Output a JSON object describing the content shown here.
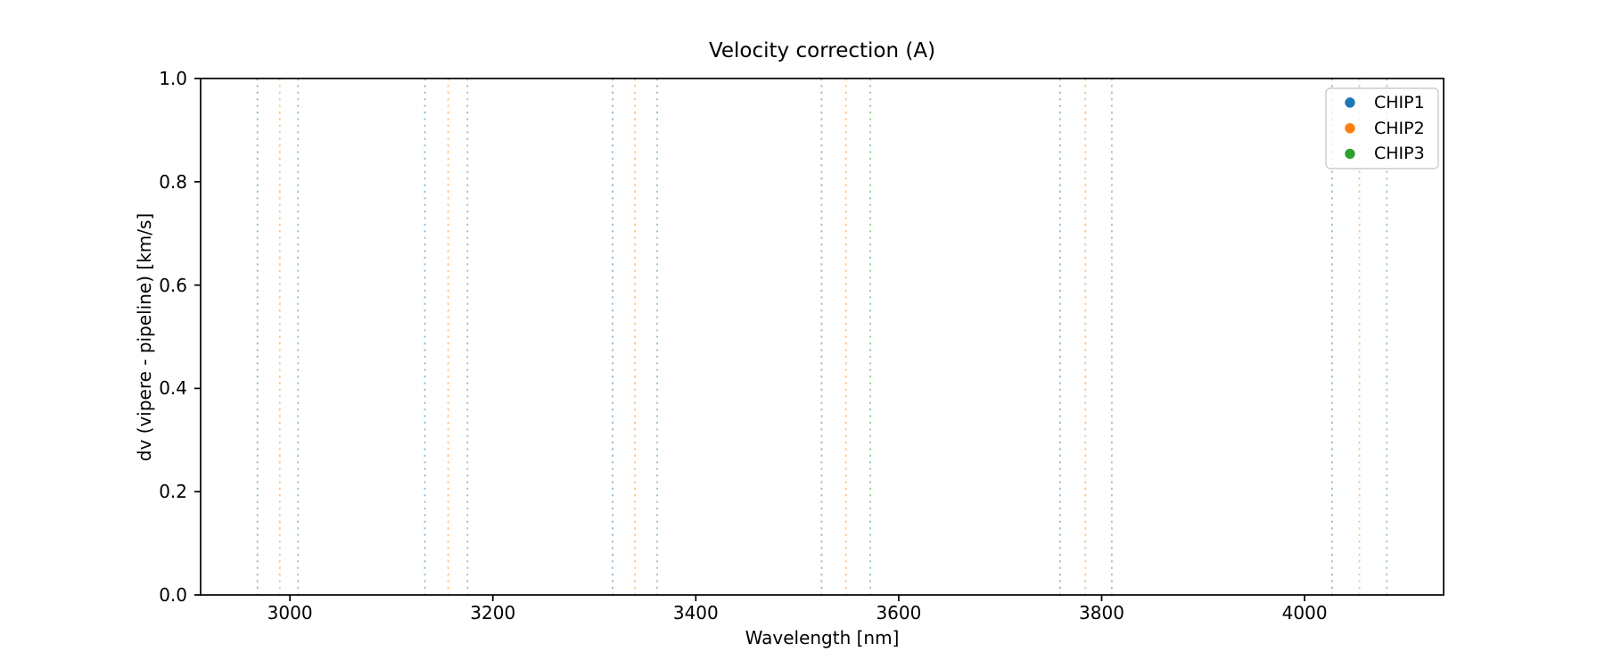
{
  "figure": {
    "background": "#ffffff",
    "axis_color": "#000000"
  },
  "chart_data": {
    "type": "scatter",
    "title": "Velocity correction (A)",
    "xlabel": "Wavelength [nm]",
    "ylabel": "dv (vipere - pipeline) [km/s]",
    "xlim": [
      2912,
      4137
    ],
    "ylim": [
      0.0,
      1.0
    ],
    "xticks": [
      3000,
      3200,
      3400,
      3600,
      3800,
      4000
    ],
    "xtick_labels": [
      "3000",
      "3200",
      "3400",
      "3600",
      "3800",
      "4000"
    ],
    "yticks": [
      0.0,
      0.2,
      0.4,
      0.6,
      0.8,
      1.0
    ],
    "ytick_labels": [
      "0.0",
      "0.2",
      "0.4",
      "0.6",
      "0.8",
      "1.0"
    ],
    "grid": false,
    "series": [
      {
        "name": "CHIP1",
        "color": "#1f77b4",
        "marker": "circle",
        "points": []
      },
      {
        "name": "CHIP2",
        "color": "#ff7f0e",
        "marker": "circle",
        "points": []
      },
      {
        "name": "CHIP3",
        "color": "#2ca02c",
        "marker": "circle",
        "points": []
      }
    ],
    "vlines": [
      {
        "series": "CHIP1",
        "color": "#1f77b4",
        "linestyle": "dotted",
        "alpha": 0.5,
        "x": [
          2968,
          3133,
          3318,
          3524,
          3759,
          4027
        ]
      },
      {
        "series": "CHIP2",
        "color": "#ff7f0e",
        "linestyle": "dotted",
        "alpha": 0.5,
        "x": [
          2990,
          3156,
          3340,
          3548,
          3784,
          4054
        ]
      },
      {
        "series": "CHIP3",
        "color": "#2ca02c",
        "linestyle": "dotted",
        "alpha": 0.5,
        "x": [
          3008,
          3175,
          3362,
          3572,
          3810,
          4081
        ]
      }
    ],
    "legend": {
      "position": "upper right",
      "border_color": "#cccccc",
      "entries": [
        {
          "label": "CHIP1",
          "color": "#1f77b4"
        },
        {
          "label": "CHIP2",
          "color": "#ff7f0e"
        },
        {
          "label": "CHIP3",
          "color": "#2ca02c"
        }
      ]
    }
  }
}
